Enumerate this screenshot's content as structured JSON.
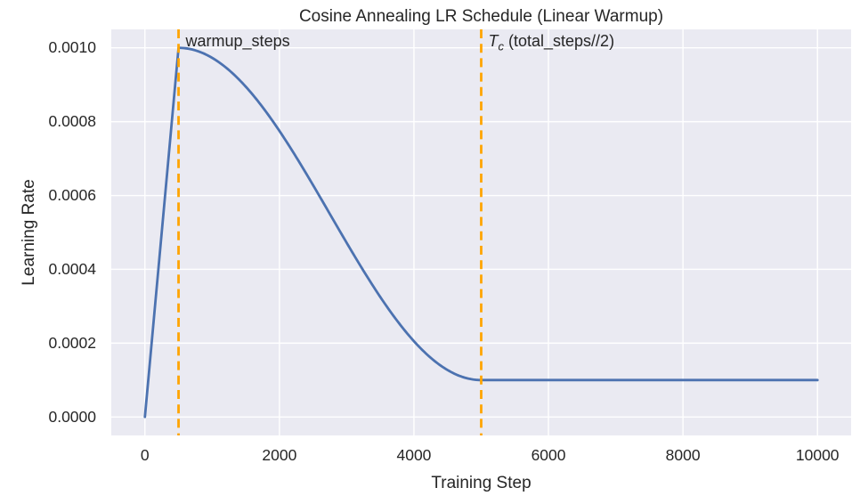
{
  "figure": {
    "title": "Cosine Annealing LR Schedule (Linear Warmup)",
    "xlabel": "Training Step",
    "ylabel": "Learning Rate",
    "annotations": {
      "warmup": {
        "text": "warmup_steps",
        "x": 500
      },
      "tc": {
        "text_var": "T",
        "text_sub": "c",
        "text_rest": " (total_steps//2)",
        "x": 5000
      }
    }
  },
  "chart_data": {
    "type": "line",
    "title": "Cosine Annealing LR Schedule (Linear Warmup)",
    "xlabel": "Training Step",
    "ylabel": "Learning Rate",
    "xlim": [
      -500,
      10500
    ],
    "ylim": [
      -5e-05,
      0.00105
    ],
    "x_ticks": [
      0,
      2000,
      4000,
      6000,
      8000,
      10000
    ],
    "x_tick_labels": [
      "0",
      "2000",
      "4000",
      "6000",
      "8000",
      "10000"
    ],
    "y_ticks": [
      0.0,
      0.0002,
      0.0004,
      0.0006,
      0.0008,
      0.001
    ],
    "y_tick_labels": [
      "0.0000",
      "0.0002",
      "0.0004",
      "0.0006",
      "0.0008",
      "0.0010"
    ],
    "grid": true,
    "legend": "none",
    "style": {
      "background": "#EAEAF2",
      "grid_color": "#FFFFFF",
      "line_color": "#4C72B0",
      "vline_color": "#FFA500",
      "text_color": "#262626"
    },
    "series": [
      {
        "name": "learning_rate",
        "color": "#4C72B0",
        "schedule_params": {
          "total_steps": 10000,
          "warmup_steps": 500,
          "cosine_end_step": 5000,
          "eta_max": 0.001,
          "eta_min": 0.0001
        },
        "sample_x": [
          0,
          250,
          500,
          750,
          1000,
          1250,
          1500,
          1750,
          2000,
          2250,
          2500,
          2750,
          3000,
          3250,
          3500,
          3750,
          4000,
          4250,
          4500,
          4750,
          5000,
          5250,
          5500,
          5750,
          6000,
          6500,
          7000,
          7500,
          8000,
          8500,
          9000,
          9500,
          10000
        ],
        "sample_y": [
          0.0,
          0.0005,
          0.001,
          0.000993,
          0.000973,
          0.00094,
          0.000895,
          0.000839,
          0.000775,
          0.000704,
          0.000628,
          0.00055,
          0.000472,
          0.000396,
          0.000325,
          0.000261,
          0.000205,
          0.00016,
          0.000127,
          0.000107,
          0.0001,
          0.0001,
          0.0001,
          0.0001,
          0.0001,
          0.0001,
          0.0001,
          0.0001,
          0.0001,
          0.0001,
          0.0001,
          0.0001,
          0.0001
        ]
      }
    ],
    "vlines": [
      {
        "x": 500,
        "label": "warmup_steps",
        "color": "#FFA500",
        "style": "dashed"
      },
      {
        "x": 5000,
        "label": "T_c (total_steps//2)",
        "color": "#FFA500",
        "style": "dashed"
      }
    ]
  }
}
